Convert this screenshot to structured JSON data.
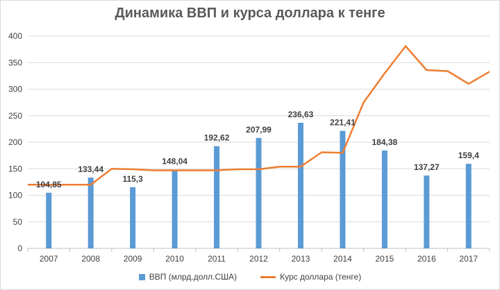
{
  "chart_data": {
    "type": "bar",
    "title": "Динамика ВВП и курса доллара к тенге",
    "xlabel": "",
    "ylabel": "",
    "ylim": [
      0,
      400
    ],
    "yticks": [
      "0",
      "50",
      "100",
      "150",
      "200",
      "250",
      "300",
      "350",
      "400"
    ],
    "grid": true,
    "legend_position": "bottom",
    "categories": [
      "2007",
      "2008",
      "2009",
      "2010",
      "2011",
      "2012",
      "2013",
      "2014",
      "2015",
      "2016",
      "2017"
    ],
    "series": [
      {
        "name": "ВВП (млрд.долл.США)",
        "type": "bar",
        "color": "#5b9bd5",
        "values": [
          104.85,
          133.44,
          115.3,
          148.04,
          192.62,
          207.99,
          236.63,
          221.41,
          184.38,
          137.27,
          159.4
        ],
        "labels": [
          "104,85",
          "133,44",
          "115,3",
          "148,04",
          "192,62",
          "207,99",
          "236,63",
          "221,41",
          "184,38",
          "137,27",
          "159,4"
        ]
      },
      {
        "name": "Курс доллара (тенге)",
        "type": "line",
        "color": "#ed7d31",
        "x": [
          2006.5,
          2007.5,
          2008,
          2008.5,
          2009,
          2009.5,
          2010,
          2010.5,
          2011,
          2011.5,
          2012,
          2012.5,
          2013,
          2013.5,
          2014,
          2014.5,
          2015,
          2015.5,
          2016,
          2016.5,
          2017,
          2017.5
        ],
        "values": [
          120,
          120,
          120,
          150,
          149,
          147,
          147,
          147,
          147,
          149,
          149,
          154,
          154,
          181,
          180,
          275,
          330,
          381,
          336,
          334,
          310,
          333
        ]
      }
    ]
  }
}
